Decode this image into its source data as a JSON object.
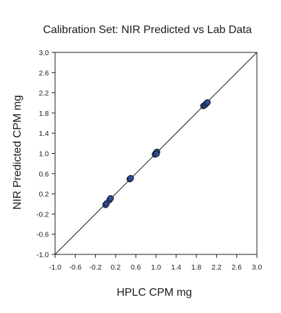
{
  "chart_data": {
    "type": "scatter",
    "title": "Calibration Set: NIR Predicted vs Lab Data",
    "xlabel": "HPLC CPM mg",
    "ylabel": "NIR Predicted CPM mg",
    "xlim": [
      -1.0,
      3.0
    ],
    "ylim": [
      -1.0,
      3.0
    ],
    "x_ticks": [
      -1.0,
      -0.6,
      -0.2,
      0.2,
      0.6,
      1.0,
      1.4,
      1.8,
      2.2,
      2.6,
      3.0
    ],
    "x_tick_labels": [
      "-1.0",
      "-0.6",
      "-0.2",
      "0.2",
      "0.6",
      "1.0",
      "1.4",
      "1.8",
      "2.2",
      "2.6",
      "3.0"
    ],
    "y_ticks": [
      3.0,
      2.6,
      2.2,
      1.8,
      1.4,
      1.0,
      0.6,
      0.2,
      -0.2,
      -0.6,
      -1.0
    ],
    "y_tick_labels": [
      "3.0",
      "2.6",
      "2.2",
      "1.8",
      "1.4",
      "1.0",
      "0.6",
      "0.2",
      "-0.2",
      "-0.6",
      "-1.0"
    ],
    "grid": false,
    "reference_line": {
      "from": [
        -1.0,
        -1.0
      ],
      "to": [
        3.0,
        3.0
      ]
    },
    "series": [
      {
        "points": [
          {
            "x": 0.0,
            "y": -0.02
          },
          {
            "x": 0.02,
            "y": 0.01
          },
          {
            "x": 0.08,
            "y": 0.08
          },
          {
            "x": 0.1,
            "y": 0.11
          },
          {
            "x": 0.48,
            "y": 0.49
          },
          {
            "x": 0.5,
            "y": 0.51
          },
          {
            "x": 0.98,
            "y": 0.98
          },
          {
            "x": 1.0,
            "y": 1.01
          },
          {
            "x": 1.02,
            "y": 1.03
          },
          {
            "x": 1.01,
            "y": 0.99
          },
          {
            "x": 1.94,
            "y": 1.94
          },
          {
            "x": 1.97,
            "y": 1.96
          },
          {
            "x": 2.0,
            "y": 1.99
          },
          {
            "x": 2.02,
            "y": 2.01
          }
        ]
      }
    ],
    "colors": {
      "marker_fill": "#2e4a9a",
      "marker_edge": "#1a1a1a",
      "line": "#1a1a1a",
      "axis": "#1a1a1a"
    }
  }
}
